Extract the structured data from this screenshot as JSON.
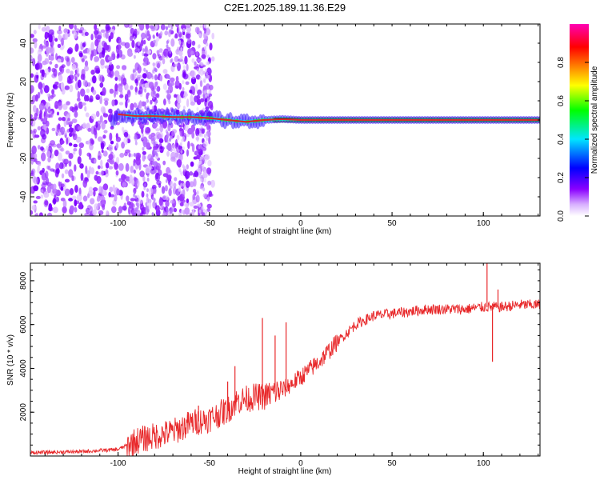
{
  "title": "C2E1.2025.189.11.36.E29",
  "colors": {
    "snr_line": "#e8282a",
    "ridge": "#d62a2a",
    "background": "#ffffff",
    "colormap": [
      "#ffffff",
      "#8a00ff",
      "#0000ff",
      "#00e5ff",
      "#00ff00",
      "#ffff00",
      "#ff8000",
      "#ff0000",
      "#ff00b4"
    ]
  },
  "chart_data": [
    {
      "type": "heatmap",
      "title": "C2E1.2025.189.11.36.E29",
      "xlabel": "Height of straight line (km)",
      "ylabel": "Frequency (Hz)",
      "xlim": [
        -148,
        131
      ],
      "ylim": [
        -50,
        50
      ],
      "x_ticks": [
        -100,
        -50,
        0,
        50,
        100
      ],
      "y_ticks": [
        -40,
        -20,
        0,
        20,
        40
      ],
      "colorbar": {
        "label": "Normalized spectral amplitude",
        "range": [
          0,
          1
        ],
        "ticks": [
          "0.0",
          "0.2",
          "0.4",
          "0.6",
          "0.8"
        ]
      },
      "grid": false,
      "ridge": {
        "x": [
          -100,
          -90,
          -80,
          -70,
          -60,
          -50,
          -40,
          -30,
          -20,
          -10,
          0,
          20,
          40,
          60,
          80,
          100,
          131
        ],
        "y": [
          3,
          2,
          2,
          1.5,
          1.5,
          1,
          0,
          -1,
          0,
          0.5,
          0,
          0,
          0,
          0,
          0,
          0,
          0
        ]
      }
    },
    {
      "type": "line",
      "xlabel": "Height of straight line (km)",
      "ylabel": "SNR (10 * v/v)",
      "xlim": [
        -148,
        131
      ],
      "ylim": [
        0,
        8800
      ],
      "x_ticks": [
        -100,
        -50,
        0,
        50,
        100
      ],
      "y_ticks": [
        2000,
        4000,
        6000,
        8000
      ],
      "grid": false,
      "series": [
        {
          "x": [
            -148,
            -120,
            -100,
            -90,
            -80,
            -70,
            -60,
            -50,
            -40,
            -35,
            -30,
            -25,
            -20,
            -15,
            -10,
            -5,
            0,
            10,
            20,
            30,
            40,
            50,
            60,
            70,
            80,
            90,
            100,
            110,
            120,
            131
          ],
          "values": [
            150,
            200,
            300,
            700,
            900,
            1100,
            1500,
            1700,
            2100,
            2500,
            2600,
            2700,
            2700,
            2900,
            3000,
            3300,
            3600,
            4300,
            5200,
            6000,
            6400,
            6500,
            6600,
            6700,
            6700,
            6700,
            6800,
            6800,
            6900,
            6900
          ]
        }
      ],
      "spikes": [
        {
          "x": -56,
          "y": 2300
        },
        {
          "x": -40,
          "y": 3400
        },
        {
          "x": -36,
          "y": 4100
        },
        {
          "x": -21,
          "y": 6300
        },
        {
          "x": -14,
          "y": 5500
        },
        {
          "x": -8,
          "y": 6100
        },
        {
          "x": 102,
          "y": 8800
        },
        {
          "x": 105,
          "y": 4300
        },
        {
          "x": 108,
          "y": 7600
        }
      ]
    }
  ]
}
